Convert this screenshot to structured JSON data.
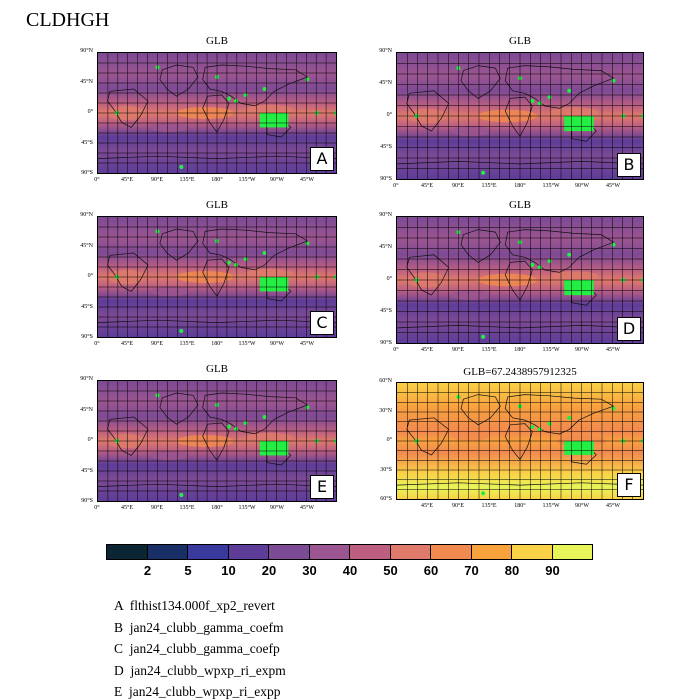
{
  "figure_title": "CLDHGH",
  "panels": [
    {
      "id": "A",
      "title": "GLB",
      "letter": "A",
      "style": "purple",
      "ylabels": [
        "90°N",
        "45°N",
        "0°",
        "45°S",
        "90°S"
      ],
      "xlabels": [
        "0°",
        "45°E",
        "90°E",
        "135°E",
        "180°",
        "135°W",
        "90°W",
        "45°W"
      ]
    },
    {
      "id": "B",
      "title": "GLB",
      "letter": "B",
      "style": "purple",
      "ylabels": [
        "90°N",
        "45°N",
        "0°",
        "45°S",
        "90°S"
      ],
      "xlabels": [
        "0°",
        "45°E",
        "90°E",
        "135°E",
        "180°",
        "135°W",
        "90°W",
        "45°W"
      ]
    },
    {
      "id": "C",
      "title": "GLB",
      "letter": "C",
      "style": "purple",
      "ylabels": [
        "90°N",
        "45°N",
        "0°",
        "45°S",
        "90°S"
      ],
      "xlabels": [
        "0°",
        "45°E",
        "90°E",
        "135°E",
        "180°",
        "135°W",
        "90°W",
        "45°W"
      ]
    },
    {
      "id": "D",
      "title": "GLB",
      "letter": "D",
      "style": "purple",
      "ylabels": [
        "90°N",
        "45°N",
        "0°",
        "45°S",
        "90°S"
      ],
      "xlabels": [
        "0°",
        "45°E",
        "90°E",
        "135°E",
        "180°",
        "135°W",
        "90°W",
        "45°W"
      ]
    },
    {
      "id": "E",
      "title": "GLB",
      "letter": "E",
      "style": "purple",
      "ylabels": [
        "90°N",
        "45°N",
        "0°",
        "45°S",
        "90°S"
      ],
      "xlabels": [
        "0°",
        "45°E",
        "90°E",
        "135°E",
        "180°",
        "135°W",
        "90°W",
        "45°W"
      ]
    },
    {
      "id": "F",
      "title": "GLB=67.2438957912325",
      "letter": "F",
      "style": "warm",
      "ylabels": [
        "60°N",
        "30°N",
        "0°",
        "30°S",
        "60°S"
      ],
      "xlabels": [
        "45°E",
        "90°E",
        "135°E",
        "180°",
        "135°W",
        "90°W",
        "45°W"
      ]
    }
  ],
  "colorbar": {
    "colors": [
      "#0b2535",
      "#172f66",
      "#3a3a9e",
      "#5d3d98",
      "#7d4a94",
      "#9b5590",
      "#bc5f83",
      "#df7a6a",
      "#f2894f",
      "#f8a23e",
      "#fad147",
      "#e8f55a"
    ],
    "labels": [
      "2",
      "5",
      "10",
      "20",
      "30",
      "40",
      "50",
      "60",
      "70",
      "80",
      "90"
    ]
  },
  "legend": [
    {
      "letter": "A",
      "name": "flthist134.000f_xp2_revert"
    },
    {
      "letter": "B",
      "name": "jan24_clubb_gamma_coefm"
    },
    {
      "letter": "C",
      "name": "jan24_clubb_gamma_coefp"
    },
    {
      "letter": "D",
      "name": "jan24_clubb_wpxp_ri_expm"
    },
    {
      "letter": "E",
      "name": "jan24_clubb_wpxp_ri_expp"
    }
  ],
  "chart_data": {
    "type": "heatmap",
    "title": "CLDHGH",
    "variable": "CLDHGH",
    "panels": [
      "A",
      "B",
      "C",
      "D",
      "E",
      "F"
    ],
    "panel_titles": [
      "GLB",
      "GLB",
      "GLB",
      "GLB",
      "GLB",
      "GLB=67.2438957912325"
    ],
    "global_mean_F": 67.2438957912325,
    "colorbar_levels": [
      2,
      5,
      10,
      20,
      30,
      40,
      50,
      60,
      70,
      80,
      90
    ],
    "legend": [
      "flthist134.000f_xp2_revert",
      "jan24_clubb_gamma_coefm",
      "jan24_clubb_gamma_coefp",
      "jan24_clubb_wpxp_ri_expm",
      "jan24_clubb_wpxp_ri_expp"
    ]
  }
}
